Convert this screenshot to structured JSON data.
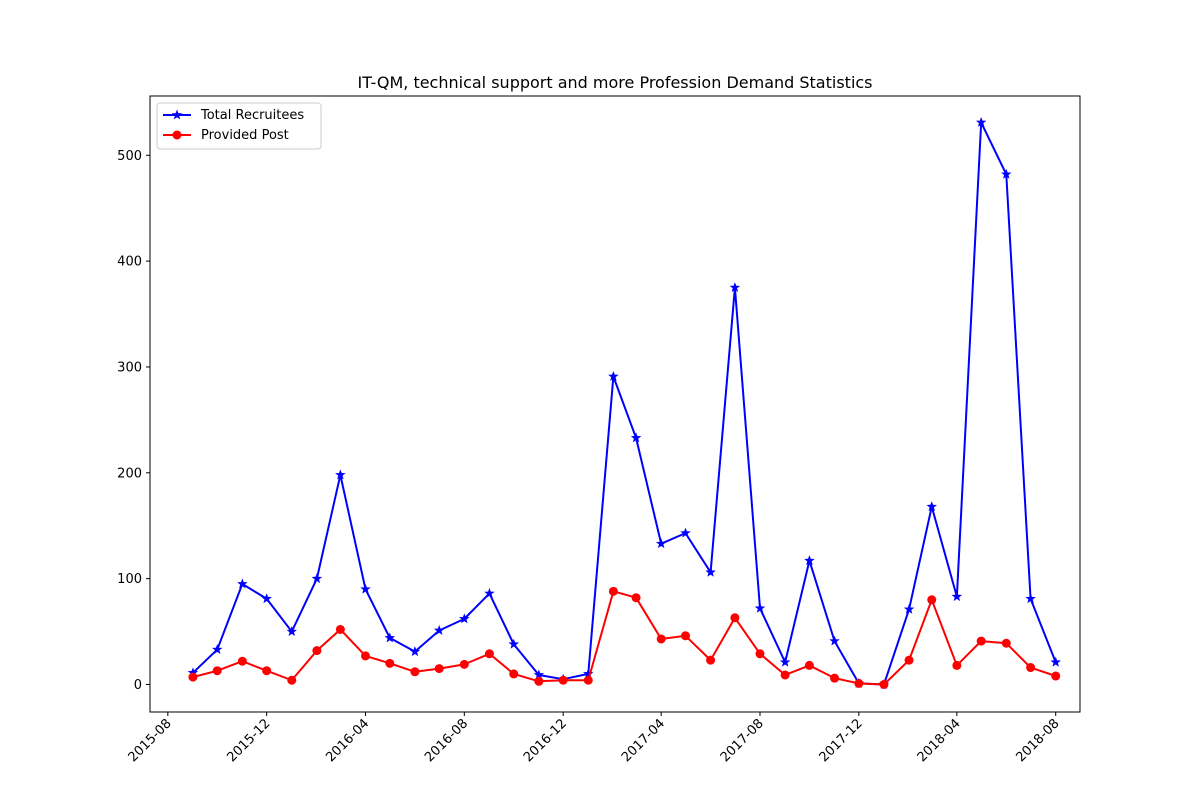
{
  "chart_data": {
    "type": "line",
    "title": "IT-QM, technical support and more Profession Demand Statistics",
    "xlabel": "",
    "ylabel": "",
    "x": [
      "2015-09",
      "2015-10",
      "2015-11",
      "2015-12",
      "2016-01",
      "2016-02",
      "2016-03",
      "2016-04",
      "2016-05",
      "2016-06",
      "2016-07",
      "2016-08",
      "2016-09",
      "2016-10",
      "2016-11",
      "2016-12",
      "2017-01",
      "2017-02",
      "2017-03",
      "2017-04",
      "2017-05",
      "2017-06",
      "2017-07",
      "2017-08",
      "2017-09",
      "2017-10",
      "2017-11",
      "2017-12",
      "2018-01",
      "2018-02",
      "2018-03",
      "2018-04",
      "2018-05",
      "2018-06",
      "2018-07",
      "2018-08"
    ],
    "x_ticks": [
      "2015-08",
      "2015-12",
      "2016-04",
      "2016-08",
      "2016-12",
      "2017-04",
      "2017-08",
      "2017-12",
      "2018-04",
      "2018-08"
    ],
    "y_ticks": [
      0,
      100,
      200,
      300,
      400,
      500
    ],
    "xlim": [
      "2015-07-10",
      "2018-08-31"
    ],
    "ylim": [
      -26,
      556
    ],
    "grid": false,
    "legend_position": "top-left",
    "series": [
      {
        "name": "Total Recruitees",
        "color": "#0000ff",
        "marker": "star",
        "values": [
          11,
          33,
          95,
          81,
          50,
          100,
          198,
          90,
          44,
          31,
          51,
          62,
          86,
          38,
          9,
          5,
          10,
          291,
          233,
          133,
          143,
          106,
          375,
          72,
          21,
          117,
          41,
          1,
          0,
          71,
          168,
          83,
          531,
          482,
          81,
          21
        ]
      },
      {
        "name": "Provided Post",
        "color": "#ff0000",
        "marker": "circle",
        "values": [
          7,
          13,
          22,
          13,
          4,
          32,
          52,
          27,
          20,
          12,
          15,
          19,
          29,
          10,
          3,
          4,
          4,
          88,
          82,
          43,
          46,
          23,
          63,
          29,
          9,
          18,
          6,
          1,
          0,
          23,
          80,
          18,
          41,
          39,
          16,
          8
        ]
      }
    ]
  }
}
